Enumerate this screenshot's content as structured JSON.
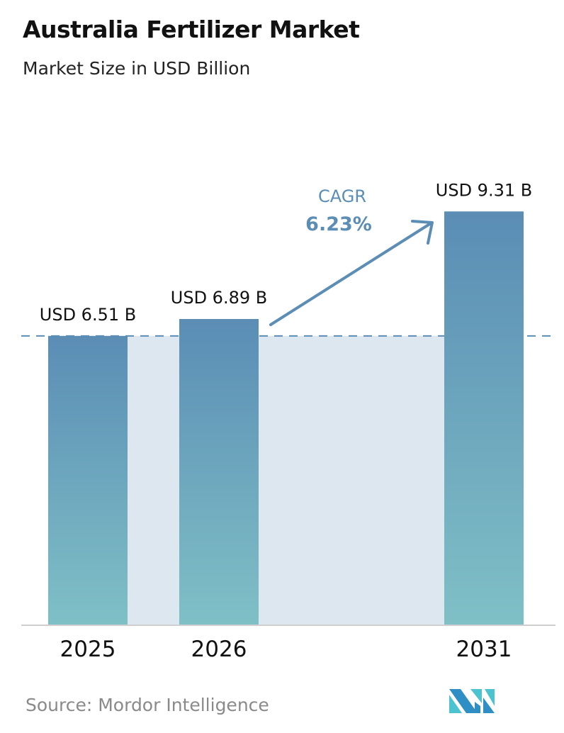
{
  "chart_data": {
    "type": "bar",
    "title": "Australia Fertilizer Market",
    "subtitle": "Market Size in USD Billion",
    "categories": [
      "2025",
      "2026",
      "2031"
    ],
    "values": [
      6.51,
      6.89,
      9.31
    ],
    "data_labels": [
      "USD 6.51 B",
      "USD 6.89 B",
      "USD 9.31 B"
    ],
    "unit": "USD Billion",
    "annotation": {
      "label": "CAGR",
      "value": "6.23%"
    },
    "reference_line": {
      "value": 6.51,
      "style": "dashed"
    },
    "grid": false,
    "colors": {
      "bar_top": "#5b8db5",
      "bar_bottom": "#7fc0c6",
      "shade": "#dde7ef",
      "arrow": "#5b8db5",
      "cagr_label": "#5b8db5"
    }
  },
  "source": "Source:  Mordor Intelligence",
  "logo": {
    "text": "MI",
    "colors": [
      "#2f8fc4",
      "#4cc3cf"
    ]
  }
}
